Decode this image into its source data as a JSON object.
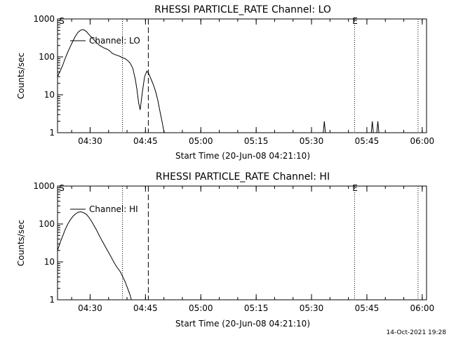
{
  "footer": {
    "timestamp": "14-Oct-2021 19:28"
  },
  "chart_data": [
    {
      "type": "line",
      "title": "RHESSI PARTICLE_RATE Channel: LO",
      "xlabel": "Start Time (20-Jun-08 04:21:10)",
      "ylabel": "Counts/sec",
      "yscale": "log",
      "ylim": [
        1,
        1000
      ],
      "xlim_minutes": [
        0,
        100
      ],
      "x_ticks": [
        {
          "label": "04:30",
          "minute": 8.83
        },
        {
          "label": "04:45",
          "minute": 23.83
        },
        {
          "label": "05:00",
          "minute": 38.83
        },
        {
          "label": "05:15",
          "minute": 53.83
        },
        {
          "label": "05:30",
          "minute": 68.83
        },
        {
          "label": "05:45",
          "minute": 83.83
        },
        {
          "label": "06:00",
          "minute": 98.83
        }
      ],
      "y_ticks": [
        {
          "label": "1",
          "value": 1
        },
        {
          "label": "10",
          "value": 10
        },
        {
          "label": "100",
          "value": 100
        },
        {
          "label": "1000",
          "value": 1000
        }
      ],
      "markers": {
        "s_label": "S",
        "e_label": "E",
        "s_minute": 0.3,
        "e_minute": 80.5,
        "dotted_minutes": [
          17.6,
          80.5,
          97.7
        ],
        "dashed_minute": 24.6
      },
      "legend": "Channel: LO",
      "series": [
        {
          "name": "Channel: LO",
          "x": [
            0,
            0.7,
            1.4,
            2.1,
            2.8,
            3.5,
            4.2,
            4.9,
            5.6,
            6.3,
            7.0,
            7.8,
            8.5,
            9.2,
            9.9,
            10.6,
            11.3,
            12.0,
            12.7,
            13.4,
            14.1,
            14.8,
            15.5,
            16.2,
            17.0,
            17.6,
            18.3,
            19.0,
            19.7,
            20.4,
            21.1,
            21.5,
            22.0,
            22.4,
            23.0,
            23.6,
            24.2,
            24.8,
            25.4,
            26.0,
            26.6,
            27.2,
            27.8,
            28.4,
            28.8,
            29.0
          ],
          "y": [
            30,
            42,
            60,
            92,
            135,
            190,
            265,
            360,
            450,
            510,
            520,
            470,
            390,
            330,
            280,
            235,
            205,
            185,
            170,
            160,
            145,
            125,
            115,
            110,
            102,
            95,
            90,
            80,
            68,
            50,
            25,
            14,
            6,
            4,
            12,
            30,
            42,
            35,
            25,
            18,
            12,
            7,
            3.5,
            1.8,
            1.1,
            1
          ],
          "spikes": [
            {
              "minute": 72.3,
              "value": 2
            },
            {
              "minute": 85.3,
              "value": 2
            },
            {
              "minute": 86.8,
              "value": 2
            }
          ]
        }
      ]
    },
    {
      "type": "line",
      "title": "RHESSI PARTICLE_RATE Channel: HI",
      "xlabel": "Start Time (20-Jun-08 04:21:10)",
      "ylabel": "Counts/sec",
      "yscale": "log",
      "ylim": [
        1,
        1000
      ],
      "xlim_minutes": [
        0,
        100
      ],
      "x_ticks": [
        {
          "label": "04:30",
          "minute": 8.83
        },
        {
          "label": "04:45",
          "minute": 23.83
        },
        {
          "label": "05:00",
          "minute": 38.83
        },
        {
          "label": "05:15",
          "minute": 53.83
        },
        {
          "label": "05:30",
          "minute": 68.83
        },
        {
          "label": "05:45",
          "minute": 83.83
        },
        {
          "label": "06:00",
          "minute": 98.83
        }
      ],
      "y_ticks": [
        {
          "label": "1",
          "value": 1
        },
        {
          "label": "10",
          "value": 10
        },
        {
          "label": "100",
          "value": 100
        },
        {
          "label": "1000",
          "value": 1000
        }
      ],
      "markers": {
        "s_label": "S",
        "e_label": "E",
        "s_minute": 0.3,
        "e_minute": 80.5,
        "dotted_minutes": [
          17.6,
          80.5,
          97.7
        ],
        "dashed_minute": 24.6
      },
      "legend": "Channel: HI",
      "series": [
        {
          "name": "Channel: HI",
          "x": [
            0,
            0.7,
            1.4,
            2.1,
            2.8,
            3.5,
            4.2,
            4.9,
            5.6,
            6.3,
            7.0,
            7.8,
            8.5,
            9.2,
            9.9,
            10.6,
            11.3,
            12.0,
            12.7,
            13.4,
            14.1,
            14.8,
            15.5,
            16.2,
            17.0,
            17.6,
            18.3,
            19.0,
            19.7,
            20.0
          ],
          "y": [
            20,
            32,
            48,
            72,
            100,
            130,
            160,
            185,
            205,
            210,
            200,
            180,
            150,
            118,
            90,
            68,
            50,
            37,
            28,
            21,
            16,
            12,
            9,
            7,
            5.5,
            4.2,
            3,
            2,
            1.3,
            1
          ]
        }
      ]
    }
  ]
}
